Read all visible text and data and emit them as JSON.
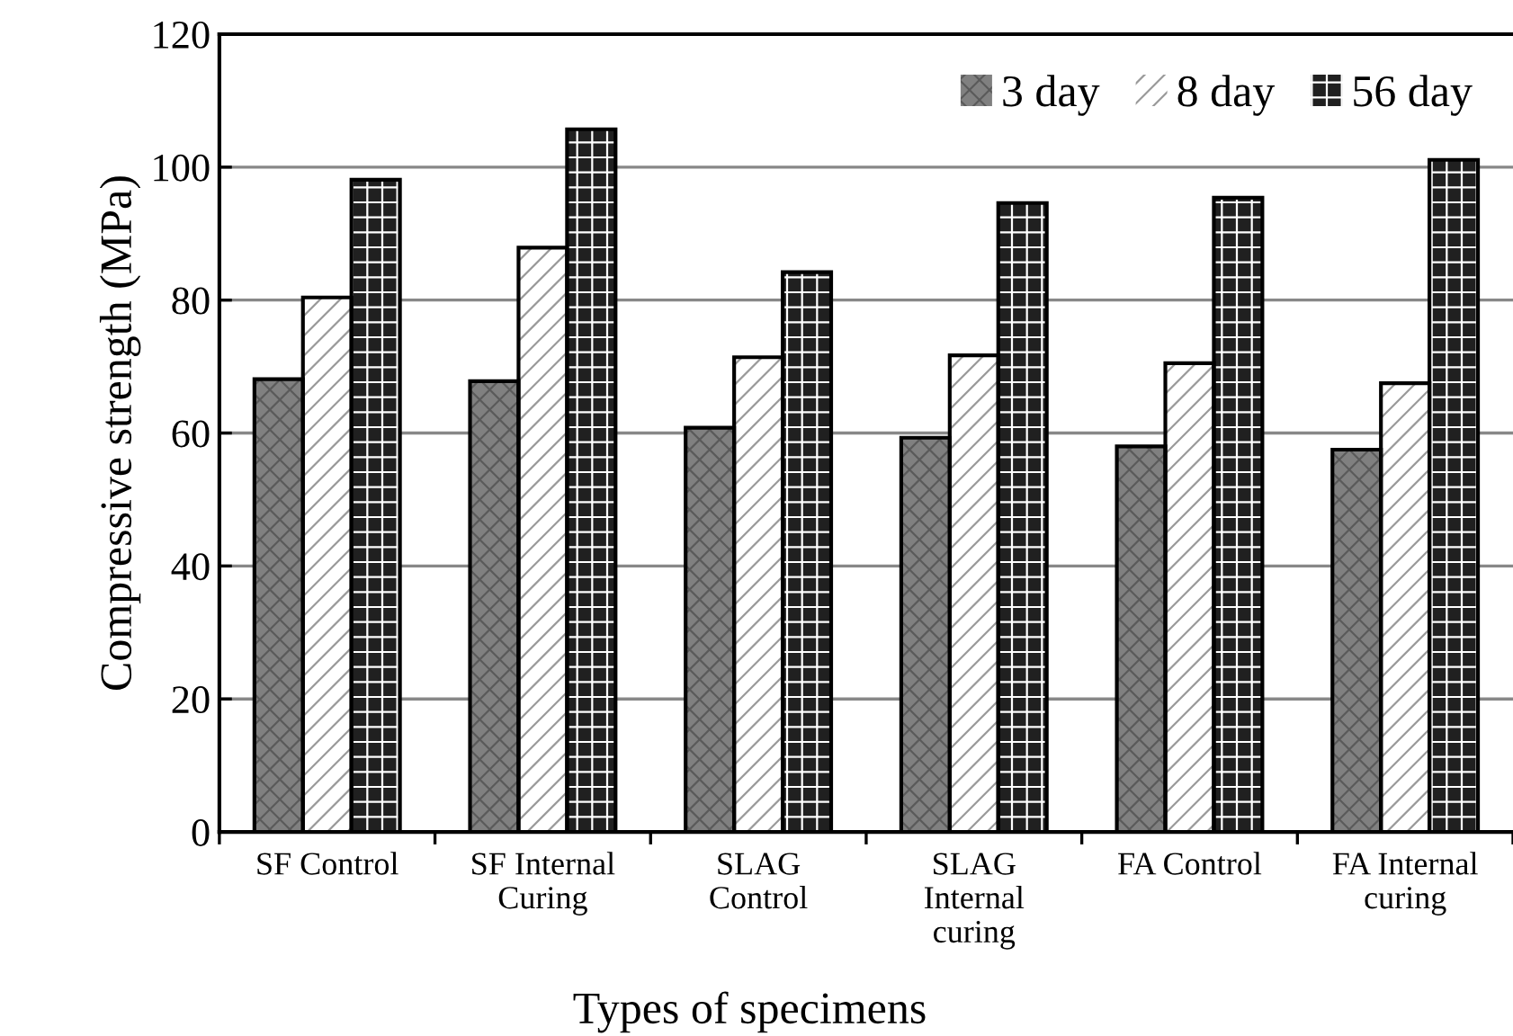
{
  "chart_data": {
    "type": "bar",
    "xlabel": "Types of specimens",
    "ylabel": "Compressive strength (MPa)",
    "categories": [
      "SF Control",
      "SF Internal\nCuring",
      "SLAG\nControl",
      "SLAG\nInternal\ncuring",
      "FA Control",
      "FA Internal\ncuring"
    ],
    "series": [
      {
        "name": "3 day",
        "color": "#808080",
        "values": [
          68.1,
          67.8,
          60.8,
          59.3,
          58.0,
          57.5
        ]
      },
      {
        "name": "8 day",
        "color": "#ffffff",
        "values": [
          80.4,
          87.9,
          71.4,
          71.7,
          70.5,
          67.5
        ]
      },
      {
        "name": "56 day",
        "color": "#202020",
        "values": [
          98.1,
          105.7,
          84.2,
          94.6,
          95.4,
          101.1
        ]
      }
    ],
    "ylim": [
      0,
      120
    ],
    "yticks": [
      0,
      20,
      40,
      60,
      80,
      100,
      120
    ],
    "grid": "y",
    "legend": "top right"
  }
}
